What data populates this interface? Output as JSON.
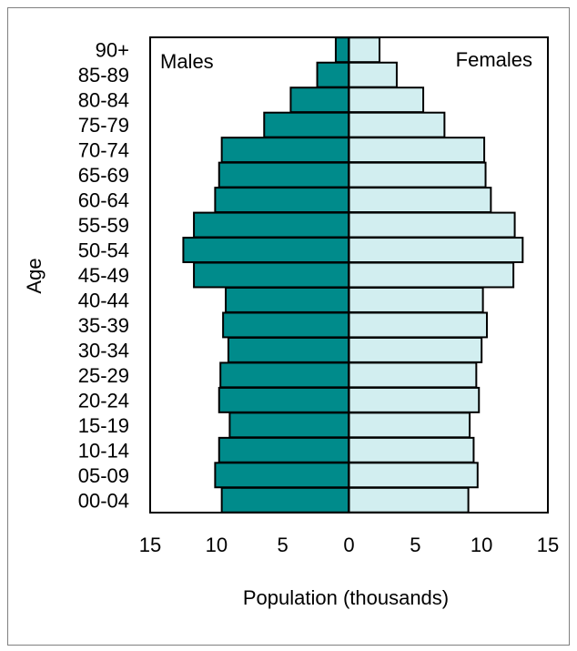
{
  "chart_data": {
    "type": "bar",
    "orientation": "horizontal",
    "layout": "population-pyramid",
    "title": "",
    "xlabel": "Population (thousands)",
    "ylabel": "Age",
    "xlim": [
      -15,
      15
    ],
    "x_ticks": [
      -15,
      -10,
      -5,
      0,
      5,
      10,
      15
    ],
    "x_tick_labels": [
      "15",
      "10",
      "5",
      "0",
      "5",
      "10",
      "15"
    ],
    "grid": false,
    "categories": [
      "90+",
      "85-89",
      "80-84",
      "75-79",
      "70-74",
      "65-69",
      "60-64",
      "55-59",
      "50-54",
      "45-49",
      "40-44",
      "35-39",
      "30-34",
      "25-29",
      "20-24",
      "15-19",
      "10-14",
      "05-09",
      "00-04"
    ],
    "series": [
      {
        "name": "Males",
        "color": "#008B8B",
        "values": [
          1.0,
          2.4,
          4.4,
          6.4,
          9.6,
          9.8,
          10.1,
          11.7,
          12.5,
          11.7,
          9.3,
          9.5,
          9.1,
          9.7,
          9.8,
          9.0,
          9.8,
          10.1,
          9.6
        ]
      },
      {
        "name": "Females",
        "color": "#D2EEF0",
        "values": [
          2.3,
          3.6,
          5.6,
          7.2,
          10.2,
          10.3,
          10.7,
          12.5,
          13.1,
          12.4,
          10.1,
          10.4,
          10.0,
          9.6,
          9.8,
          9.1,
          9.4,
          9.7,
          9.0
        ]
      }
    ],
    "legend": {
      "placement": "inside-top",
      "entries": [
        "Males",
        "Females"
      ]
    }
  }
}
